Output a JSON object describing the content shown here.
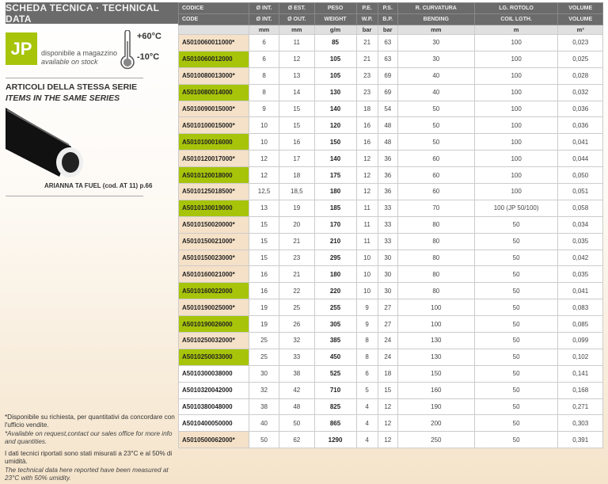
{
  "left": {
    "title": "SCHEDA TECNICA · TECHNICAL DATA",
    "logo": "JP",
    "stock_it": "disponibile a magazzino",
    "stock_en": "available on stock",
    "temp_max": "+60°C",
    "temp_min": "-10°C",
    "series_it": "ARTICOLI DELLA STESSA SERIE",
    "series_en": "ITEMS IN THE SAME SERIES",
    "product_caption": "ARIANNA TA FUEL (cod. AT 11) p.66",
    "note1_it": "*Disponibile su richiesta, per quantitativi da concordare con l'ufficio vendite.",
    "note1_en": "*Available on request,contact our sales office for more info and quantities.",
    "note2_it": "I dati tecnici riportati sono stati misurati a 23°C e al 50% di umidità.",
    "note2_en": "The technical data here reported have been measured at 23°C with 50% umidity."
  },
  "colors": {
    "green": "#a7c40a",
    "beige": "#f5e1c7",
    "header": "#6b6b6b"
  },
  "table": {
    "header_it": [
      "CODICE",
      "Ø INT.",
      "Ø EST.",
      "PESO",
      "P.E.",
      "P.S.",
      "R. CURVATURA",
      "LG. ROTOLO",
      "VOLUME"
    ],
    "header_en": [
      "CODE",
      "Ø INT.",
      "Ø OUT.",
      "WEIGHT",
      "W.P.",
      "B.P.",
      "BENDING",
      "COIL LGTH.",
      "VOLUME"
    ],
    "units": [
      "",
      "mm",
      "mm",
      "g/m",
      "bar",
      "bar",
      "mm",
      "m",
      "m³"
    ],
    "rows": [
      {
        "type": "beige",
        "cells": [
          "A5010060011000*",
          "6",
          "11",
          "85",
          "21",
          "63",
          "30",
          "100",
          "0,023"
        ]
      },
      {
        "type": "green",
        "cells": [
          "A5010060012000",
          "6",
          "12",
          "105",
          "21",
          "63",
          "30",
          "100",
          "0,025"
        ]
      },
      {
        "type": "beige",
        "cells": [
          "A5010080013000*",
          "8",
          "13",
          "105",
          "23",
          "69",
          "40",
          "100",
          "0,028"
        ]
      },
      {
        "type": "green",
        "cells": [
          "A5010080014000",
          "8",
          "14",
          "130",
          "23",
          "69",
          "40",
          "100",
          "0,032"
        ]
      },
      {
        "type": "beige",
        "cells": [
          "A5010090015000*",
          "9",
          "15",
          "140",
          "18",
          "54",
          "50",
          "100",
          "0,036"
        ]
      },
      {
        "type": "beige",
        "cells": [
          "A5010100015000*",
          "10",
          "15",
          "120",
          "16",
          "48",
          "50",
          "100",
          "0,036"
        ]
      },
      {
        "type": "green",
        "cells": [
          "A5010100016000",
          "10",
          "16",
          "150",
          "16",
          "48",
          "50",
          "100",
          "0,041"
        ]
      },
      {
        "type": "beige",
        "cells": [
          "A5010120017000*",
          "12",
          "17",
          "140",
          "12",
          "36",
          "60",
          "100",
          "0,044"
        ]
      },
      {
        "type": "green",
        "cells": [
          "A5010120018000",
          "12",
          "18",
          "175",
          "12",
          "36",
          "60",
          "100",
          "0,050"
        ]
      },
      {
        "type": "beige",
        "cells": [
          "A5010125018500*",
          "12,5",
          "18,5",
          "180",
          "12",
          "36",
          "60",
          "100",
          "0,051"
        ]
      },
      {
        "type": "green",
        "cells": [
          "A5010130019000",
          "13",
          "19",
          "185",
          "11",
          "33",
          "70",
          "100 (JP 50/100)",
          "0,058"
        ]
      },
      {
        "type": "beige",
        "cells": [
          "A5010150020000*",
          "15",
          "20",
          "170",
          "11",
          "33",
          "80",
          "50",
          "0,034"
        ]
      },
      {
        "type": "beige",
        "cells": [
          "A5010150021000*",
          "15",
          "21",
          "210",
          "11",
          "33",
          "80",
          "50",
          "0,035"
        ]
      },
      {
        "type": "beige",
        "cells": [
          "A5010150023000*",
          "15",
          "23",
          "295",
          "10",
          "30",
          "80",
          "50",
          "0,042"
        ]
      },
      {
        "type": "beige",
        "cells": [
          "A5010160021000*",
          "16",
          "21",
          "180",
          "10",
          "30",
          "80",
          "50",
          "0,035"
        ]
      },
      {
        "type": "green",
        "cells": [
          "A5010160022000",
          "16",
          "22",
          "220",
          "10",
          "30",
          "80",
          "50",
          "0,041"
        ]
      },
      {
        "type": "beige",
        "cells": [
          "A5010190025000*",
          "19",
          "25",
          "255",
          "9",
          "27",
          "100",
          "50",
          "0,083"
        ]
      },
      {
        "type": "green",
        "cells": [
          "A5010190026000",
          "19",
          "26",
          "305",
          "9",
          "27",
          "100",
          "50",
          "0,085"
        ]
      },
      {
        "type": "beige",
        "cells": [
          "A5010250032000*",
          "25",
          "32",
          "385",
          "8",
          "24",
          "130",
          "50",
          "0,099"
        ]
      },
      {
        "type": "green",
        "cells": [
          "A5010250033000",
          "25",
          "33",
          "450",
          "8",
          "24",
          "130",
          "50",
          "0,102"
        ]
      },
      {
        "type": "white",
        "cells": [
          "A5010300038000",
          "30",
          "38",
          "525",
          "6",
          "18",
          "150",
          "50",
          "0,141"
        ]
      },
      {
        "type": "white",
        "cells": [
          "A5010320042000",
          "32",
          "42",
          "710",
          "5",
          "15",
          "160",
          "50",
          "0,168"
        ]
      },
      {
        "type": "white",
        "cells": [
          "A5010380048000",
          "38",
          "48",
          "825",
          "4",
          "12",
          "190",
          "50",
          "0,271"
        ]
      },
      {
        "type": "white",
        "cells": [
          "A5010400050000",
          "40",
          "50",
          "865",
          "4",
          "12",
          "200",
          "50",
          "0,303"
        ]
      },
      {
        "type": "beige",
        "cells": [
          "A5010500062000*",
          "50",
          "62",
          "1290",
          "4",
          "12",
          "250",
          "50",
          "0,391"
        ]
      }
    ]
  }
}
